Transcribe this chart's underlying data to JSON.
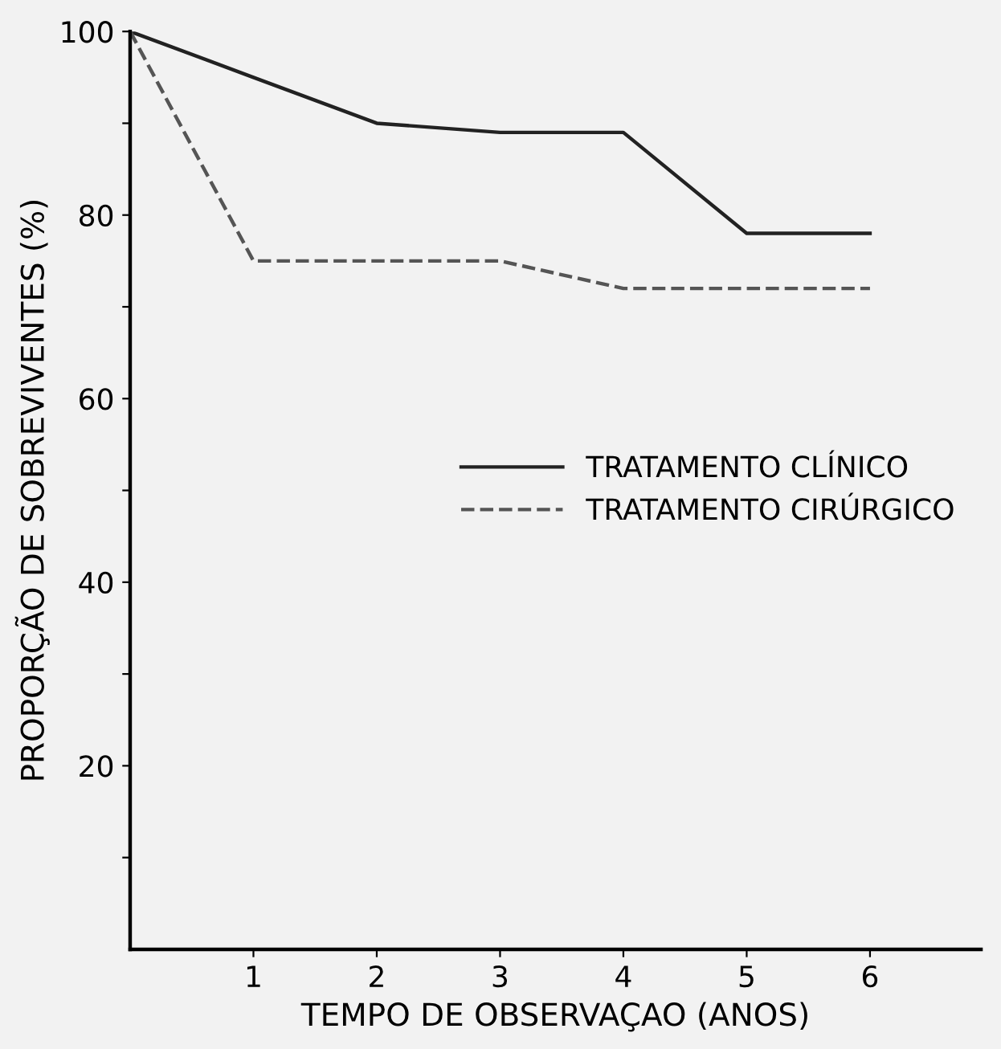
{
  "chart_data": {
    "type": "line",
    "xlabel": "TEMPO DE OBSERVAÇAO (ANOS)",
    "ylabel": "PROPORÇÃO DE SOBREVIVENTES (%)",
    "x": [
      0,
      1,
      2,
      3,
      4,
      5,
      6
    ],
    "series": [
      {
        "name": "TRATAMENTO CLÍNICO",
        "color": "#222222",
        "line_style": "solid",
        "values": [
          100,
          95,
          90,
          89,
          89,
          78,
          78
        ]
      },
      {
        "name": "TRATAMENTO CIRÚRGICO",
        "color": "#555555",
        "line_style": "dashed",
        "values": [
          100,
          75,
          75,
          75,
          72,
          72,
          72
        ]
      }
    ],
    "xlim": [
      0,
      6.9
    ],
    "ylim": [
      0,
      100
    ],
    "xticks": [
      1,
      2,
      3,
      4,
      5,
      6
    ],
    "yticks": [
      {
        "value": 10,
        "label": null
      },
      20,
      {
        "value": 30,
        "label": null
      },
      40,
      {
        "value": 50,
        "label": null
      },
      60,
      {
        "value": 70,
        "label": null
      },
      80,
      {
        "value": 90,
        "label": null
      },
      100
    ],
    "grid": false,
    "legend": "center right",
    "marker": "none"
  }
}
